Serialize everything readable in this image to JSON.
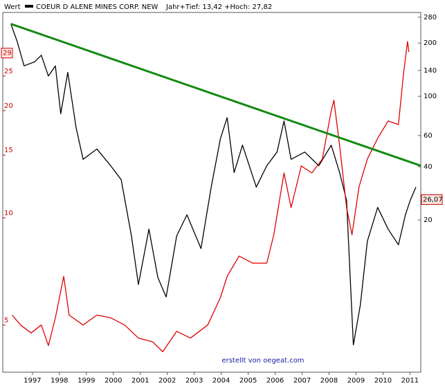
{
  "chart_data": {
    "type": "line",
    "y_label": "Wert",
    "subtitle": "Jahr+Tief: 13,42 +Hoch: 27,82",
    "credit": "erstellt von oegeat.com",
    "log_scale": true,
    "xlim": [
      1995.9,
      2011.4
    ],
    "xticks": [
      1997,
      1998,
      1999,
      2000,
      2001,
      2002,
      2003,
      2004,
      2005,
      2006,
      2007,
      2008,
      2009,
      2010,
      2011
    ],
    "ylim": [
      3.69,
      37.7
    ],
    "yticks": [
      5,
      10,
      15,
      20,
      25
    ],
    "y_marker": 29,
    "y2lim": [
      2.76,
      297.8
    ],
    "y2ticks": [
      20,
      40,
      60,
      100,
      140,
      200,
      280
    ],
    "y2_marker": {
      "value": 26.07,
      "label": "26,07"
    },
    "series": [
      {
        "name": "COEUR D ALENE MINES CORP. NEW",
        "color": "#000000",
        "x": [
          1996.2,
          1996.43,
          1996.69,
          1997.08,
          1997.33,
          1997.59,
          1997.85,
          1998.05,
          1998.31,
          1998.62,
          1998.88,
          1999.39,
          1999.9,
          2000.29,
          2000.67,
          2000.93,
          2001.32,
          2001.65,
          2001.96,
          2002.35,
          2002.73,
          2003.25,
          2003.63,
          2003.97,
          2004.22,
          2004.48,
          2004.79,
          2005.3,
          2005.69,
          2006.07,
          2006.33,
          2006.59,
          2007.1,
          2007.62,
          2008.08,
          2008.39,
          2008.65,
          2008.9,
          2009.16,
          2009.42,
          2009.8,
          2010.19,
          2010.57,
          2010.83,
          2011.01,
          2011.22
        ],
        "values": [
          35,
          31.3,
          26.7,
          27.4,
          28.6,
          25,
          26.7,
          19.6,
          25.6,
          17.9,
          14.6,
          15.6,
          14,
          12.8,
          8.9,
          6.5,
          9.3,
          6.8,
          6,
          8.9,
          10.2,
          8.2,
          12.2,
          16.7,
          19.1,
          13.4,
          16,
          12.2,
          14,
          15.3,
          18.7,
          14.6,
          15.3,
          14,
          16,
          13.4,
          11.2,
          4.4,
          5.7,
          8.6,
          10.7,
          9.3,
          8.4,
          10.2,
          11.2,
          12.2
        ]
      },
      {
        "color": "#e00000",
        "axis": "y2",
        "x": [
          1996.25,
          1996.56,
          1996.95,
          1997.33,
          1997.59,
          1997.85,
          1998.16,
          1998.36,
          1998.88,
          1999.39,
          1999.9,
          2000.42,
          2000.93,
          2001.45,
          2001.83,
          2002.35,
          2002.86,
          2003.5,
          2003.97,
          2004.22,
          2004.66,
          2005.17,
          2005.69,
          2005.95,
          2006.33,
          2006.59,
          2006.97,
          2007.36,
          2007.75,
          2008.08,
          2008.18,
          2008.39,
          2008.65,
          2008.85,
          2009.11,
          2009.42,
          2009.8,
          2010.19,
          2010.57,
          2010.75,
          2010.91,
          2010.96
        ],
        "values": [
          5.8,
          5.1,
          4.6,
          5.1,
          3.9,
          5.6,
          9.6,
          5.8,
          5.1,
          5.8,
          5.6,
          5.1,
          4.3,
          4.1,
          3.6,
          4.7,
          4.3,
          5.1,
          7.3,
          9.6,
          12.5,
          11.4,
          11.4,
          16.5,
          36.9,
          23.5,
          40.4,
          36.9,
          44.2,
          83,
          95,
          52.9,
          23.5,
          16.5,
          30.8,
          44.2,
          57.9,
          72.5,
          69.3,
          130,
          204,
          178
        ]
      }
    ],
    "trend_line": {
      "color": "#138a13",
      "x": [
        1996.2,
        2011.4
      ],
      "values": [
        35,
        14
      ]
    }
  }
}
